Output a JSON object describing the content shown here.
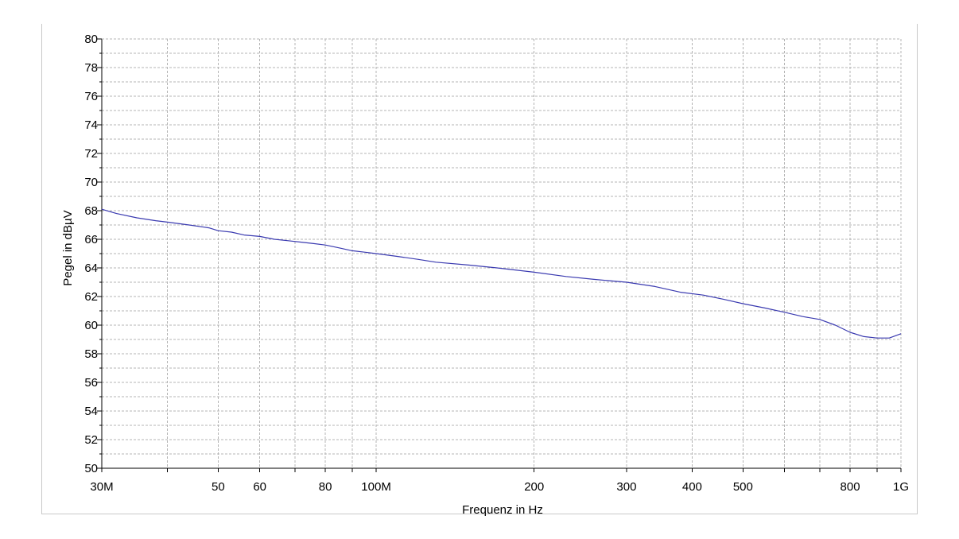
{
  "chart_data": {
    "type": "line",
    "title": "",
    "xlabel": "Frequenz in Hz",
    "ylabel": "Pegel in dBµV",
    "x_scale": "log",
    "xlim": [
      30000000,
      1000000000
    ],
    "ylim": [
      50,
      80
    ],
    "grid": true,
    "y_ticks": [
      50,
      52,
      54,
      56,
      58,
      60,
      62,
      64,
      66,
      68,
      70,
      72,
      74,
      76,
      78,
      80
    ],
    "x_ticks": [
      {
        "value": 30000000,
        "label": "30M"
      },
      {
        "value": 50000000,
        "label": "50"
      },
      {
        "value": 60000000,
        "label": "60"
      },
      {
        "value": 80000000,
        "label": "80"
      },
      {
        "value": 100000000,
        "label": "100M"
      },
      {
        "value": 200000000,
        "label": "200"
      },
      {
        "value": 300000000,
        "label": "300"
      },
      {
        "value": 400000000,
        "label": "400"
      },
      {
        "value": 500000000,
        "label": "500"
      },
      {
        "value": 800000000,
        "label": "800"
      },
      {
        "value": 1000000000,
        "label": "1G"
      }
    ],
    "x_gridlines": [
      30000000,
      40000000,
      50000000,
      60000000,
      70000000,
      80000000,
      90000000,
      100000000,
      200000000,
      300000000,
      400000000,
      500000000,
      600000000,
      700000000,
      800000000,
      900000000,
      1000000000
    ],
    "series": [
      {
        "color": "#3a3ab0",
        "x": [
          30000000,
          32000000,
          35000000,
          38000000,
          40000000,
          44000000,
          46000000,
          48000000,
          50000000,
          53000000,
          56000000,
          60000000,
          64000000,
          68000000,
          72000000,
          76000000,
          80000000,
          85000000,
          90000000,
          95000000,
          100000000,
          110000000,
          120000000,
          130000000,
          150000000,
          170000000,
          200000000,
          230000000,
          260000000,
          300000000,
          340000000,
          380000000,
          420000000,
          460000000,
          500000000,
          550000000,
          600000000,
          650000000,
          700000000,
          750000000,
          800000000,
          850000000,
          900000000,
          950000000,
          1000000000
        ],
        "y": [
          68.1,
          67.8,
          67.5,
          67.3,
          67.2,
          67.0,
          66.9,
          66.8,
          66.6,
          66.5,
          66.3,
          66.2,
          66.0,
          65.9,
          65.8,
          65.7,
          65.6,
          65.4,
          65.2,
          65.1,
          65.0,
          64.8,
          64.6,
          64.4,
          64.2,
          64.0,
          63.7,
          63.4,
          63.2,
          63.0,
          62.7,
          62.3,
          62.1,
          61.8,
          61.5,
          61.2,
          60.9,
          60.6,
          60.4,
          60.0,
          59.5,
          59.2,
          59.1,
          59.1,
          59.4
        ]
      }
    ]
  }
}
